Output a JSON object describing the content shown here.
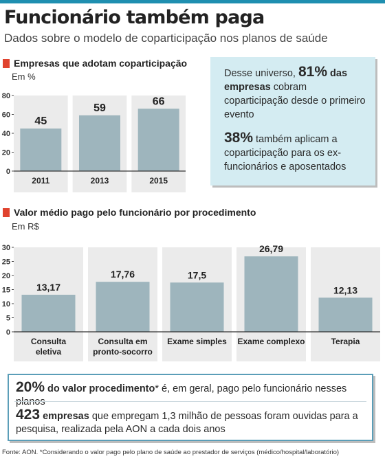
{
  "title": "Funcionário também paga",
  "subtitle": "Dados sobre o modelo de coparticipação nos planos de saúde",
  "chart_data": [
    {
      "type": "bar",
      "title": "Empresas que adotam coparticipação",
      "unit": "Em %",
      "categories": [
        "2011",
        "2013",
        "2015"
      ],
      "values": [
        45,
        59,
        66
      ],
      "value_labels": [
        "45",
        "59",
        "66"
      ],
      "ylim": [
        0,
        80
      ],
      "yticks": [
        "0",
        "20",
        "40",
        "60",
        "80"
      ],
      "colors": {
        "bar": "#9eb5bd",
        "panel": "#ebebeb",
        "accent": "#e0432e"
      }
    },
    {
      "type": "bar",
      "title": "Valor médio pago pelo funcionário por procedimento",
      "unit": "Em R$",
      "categories": [
        "Consulta eletiva",
        "Consulta em pronto-socorro",
        "Exame simples",
        "Exame complexo",
        "Terapia"
      ],
      "values": [
        13.17,
        17.76,
        17.5,
        26.79,
        12.13
      ],
      "value_labels": [
        "13,17",
        "17,76",
        "17,5",
        "26,79",
        "12,13"
      ],
      "ylim": [
        0,
        30
      ],
      "yticks": [
        "0",
        "5",
        "10",
        "15",
        "20",
        "25",
        "30"
      ]
    }
  ],
  "infobox": {
    "p1_pre": "Desse universo, ",
    "p1_big": "81%",
    "p1_bold": " das empresas",
    "p1_post": " cobram coparticipação desde o primeiro evento",
    "p2_big": "38%",
    "p2_post": " também aplicam a coparticipação para os ex-funcionários e aposentados",
    "background": "#d4ecf2"
  },
  "footnote_box": {
    "p1_big": "20%",
    "p1_bold": " do valor procedimento",
    "p1_post": "* é, em geral, pago pelo funcionário nesses planos",
    "p2_big": "423",
    "p2_bold": " empresas",
    "p2_post": " que empregam 1,3 milhão de pessoas foram ouvidas para a pesquisa, realizada pela AON a cada dois anos",
    "border_color": "#5b9eb8"
  },
  "source": "Fonte: AON. *Considerando o valor pago pelo plano de saúde ao prestador de serviços (médico/hospital/laboratório)"
}
